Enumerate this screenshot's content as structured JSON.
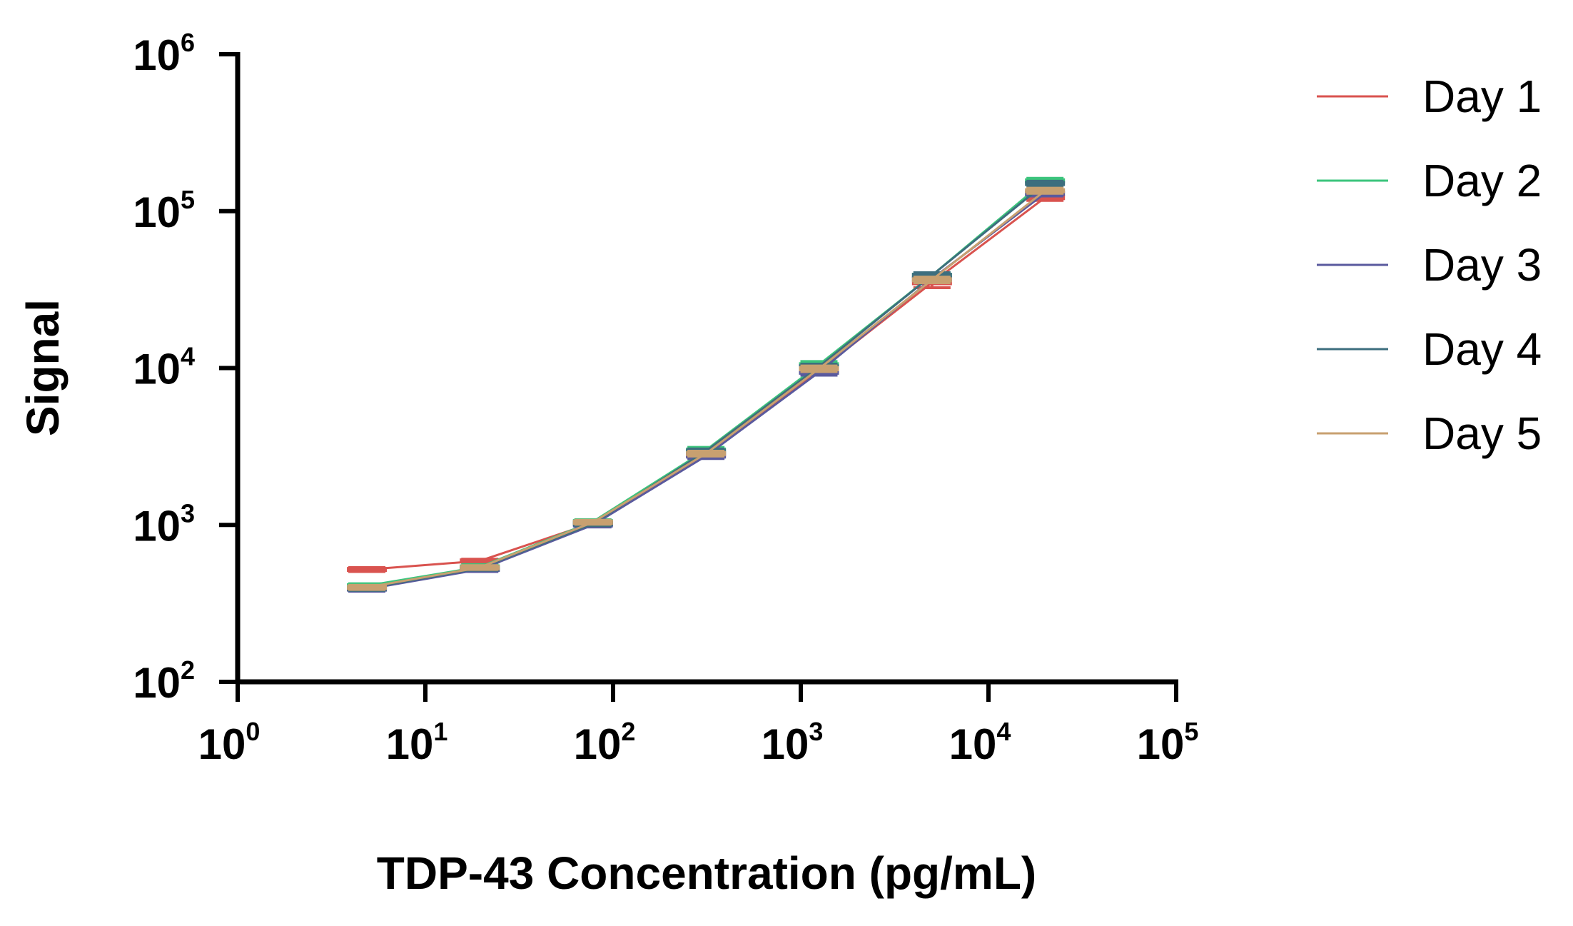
{
  "chart_data": {
    "type": "line",
    "xlabel": "TDP-43 Concentration (pg/mL)",
    "ylabel": "Signal",
    "xscale": "log",
    "yscale": "log",
    "xlim": [
      1,
      100000
    ],
    "ylim": [
      100,
      1000000
    ],
    "xticks": [
      {
        "base": "10",
        "exp": "0"
      },
      {
        "base": "10",
        "exp": "1"
      },
      {
        "base": "10",
        "exp": "2"
      },
      {
        "base": "10",
        "exp": "3"
      },
      {
        "base": "10",
        "exp": "4"
      },
      {
        "base": "10",
        "exp": "5"
      }
    ],
    "yticks": [
      {
        "base": "10",
        "exp": "2"
      },
      {
        "base": "10",
        "exp": "3"
      },
      {
        "base": "10",
        "exp": "4"
      },
      {
        "base": "10",
        "exp": "5"
      },
      {
        "base": "10",
        "exp": "6"
      }
    ],
    "grid": false,
    "legend_position": "right",
    "x": [
      4.88,
      19.5,
      78.1,
      312.5,
      1250,
      5000,
      20000
    ],
    "series": [
      {
        "name": "Day 1",
        "color": "#d9534f",
        "values": [
          520,
          590,
          1030,
          2800,
          9600,
          35000,
          122000
        ],
        "errors": [
          15,
          15,
          30,
          100,
          400,
          2500,
          5000
        ]
      },
      {
        "name": "Day 2",
        "color": "#3cc47c",
        "values": [
          410,
          540,
          1050,
          3000,
          10500,
          39000,
          156000
        ],
        "errors": [
          12,
          18,
          30,
          120,
          500,
          1500,
          6000
        ]
      },
      {
        "name": "Day 3",
        "color": "#5a5a9e",
        "values": [
          390,
          520,
          1000,
          2750,
          9400,
          37000,
          130000
        ],
        "errors": [
          12,
          15,
          30,
          100,
          400,
          1500,
          5000
        ]
      },
      {
        "name": "Day 4",
        "color": "#3d6e7e",
        "values": [
          395,
          530,
          1020,
          2950,
          10200,
          39000,
          150000
        ],
        "errors": [
          12,
          15,
          30,
          100,
          400,
          1500,
          5000
        ]
      },
      {
        "name": "Day 5",
        "color": "#c8a070",
        "values": [
          400,
          535,
          1040,
          2850,
          9900,
          36500,
          135000
        ],
        "errors": [
          12,
          15,
          30,
          100,
          400,
          1500,
          5000
        ]
      }
    ]
  }
}
